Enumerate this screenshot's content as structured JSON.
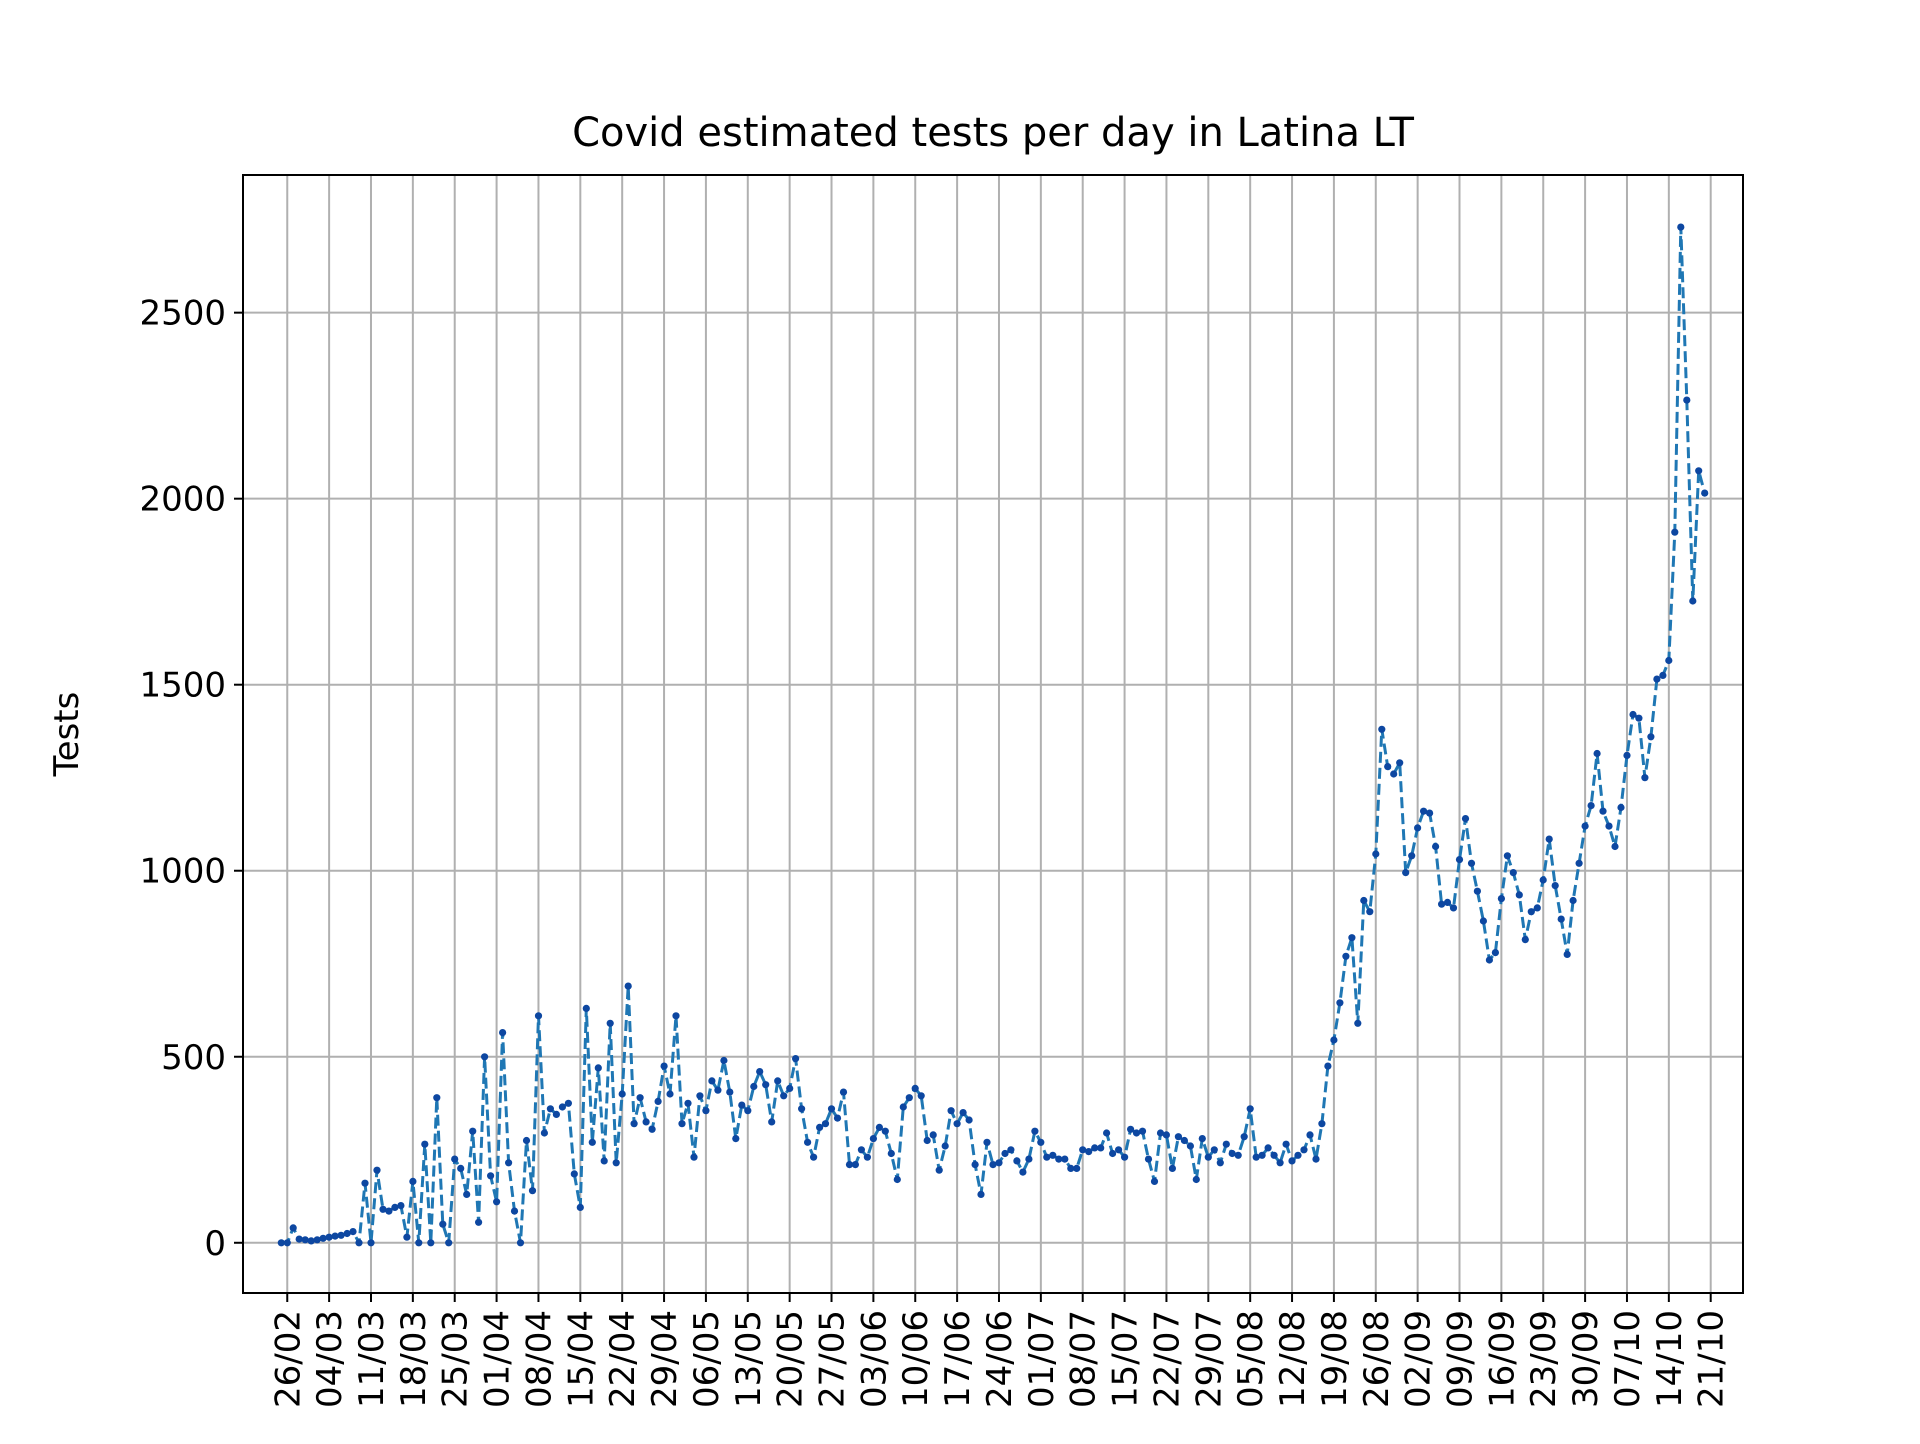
{
  "chart_data": {
    "type": "line",
    "title": "Covid estimated tests per day in Latina LT",
    "xlabel": "",
    "ylabel": "Tests",
    "ylim": [
      -135,
      2870
    ],
    "y_ticks": [
      0,
      500,
      1000,
      1500,
      2000,
      2500
    ],
    "grid": true,
    "legend": "none",
    "line_color": "#1f77b4",
    "marker_color": "#0d47a1",
    "line_style": "dashed",
    "x_start": "2020-02-25",
    "x_tick_labels": [
      "26/02",
      "04/03",
      "11/03",
      "18/03",
      "25/03",
      "01/04",
      "08/04",
      "15/04",
      "22/04",
      "29/04",
      "06/05",
      "13/05",
      "20/05",
      "27/05",
      "03/06",
      "10/06",
      "17/06",
      "24/06",
      "01/07",
      "08/07",
      "15/07",
      "22/07",
      "29/07",
      "05/08",
      "12/08",
      "19/08",
      "26/08",
      "02/09",
      "09/09",
      "16/09",
      "23/09",
      "30/09",
      "07/10",
      "14/10",
      "21/10"
    ],
    "x_tick_dates": [
      "2020-02-26",
      "2020-03-04",
      "2020-03-11",
      "2020-03-18",
      "2020-03-25",
      "2020-04-01",
      "2020-04-08",
      "2020-04-15",
      "2020-04-22",
      "2020-04-29",
      "2020-05-06",
      "2020-05-13",
      "2020-05-20",
      "2020-05-27",
      "2020-06-03",
      "2020-06-10",
      "2020-06-17",
      "2020-06-24",
      "2020-07-01",
      "2020-07-08",
      "2020-07-15",
      "2020-07-22",
      "2020-07-29",
      "2020-08-05",
      "2020-08-12",
      "2020-08-19",
      "2020-08-26",
      "2020-09-02",
      "2020-09-09",
      "2020-09-16",
      "2020-09-23",
      "2020-09-30",
      "2020-10-07",
      "2020-10-14",
      "2020-10-21"
    ],
    "series": [
      {
        "values": [
          0,
          0,
          40,
          10,
          8,
          5,
          8,
          12,
          15,
          18,
          20,
          25,
          30,
          0,
          160,
          0,
          195,
          90,
          85,
          95,
          100,
          15,
          165,
          0,
          265,
          0,
          390,
          50,
          0,
          225,
          200,
          130,
          300,
          55,
          500,
          180,
          110,
          565,
          215,
          85,
          0,
          275,
          140,
          610,
          295,
          360,
          345,
          365,
          375,
          185,
          95,
          630,
          270,
          470,
          220,
          590,
          215,
          400,
          690,
          320,
          390,
          325,
          305,
          380,
          475,
          400,
          610,
          320,
          375,
          230,
          395,
          355,
          435,
          410,
          490,
          405,
          280,
          370,
          355,
          420,
          460,
          425,
          325,
          435,
          395,
          415,
          495,
          360,
          270,
          230,
          310,
          320,
          360,
          335,
          405,
          210,
          210,
          250,
          230,
          280,
          310,
          300,
          240,
          170,
          365,
          390,
          415,
          395,
          275,
          290,
          195,
          260,
          355,
          320,
          350,
          330,
          210,
          130,
          270,
          210,
          215,
          240,
          250,
          220,
          190,
          225,
          300,
          270,
          230,
          235,
          225,
          225,
          200,
          200,
          250,
          245,
          255,
          255,
          295,
          240,
          250,
          230,
          305,
          295,
          300,
          225,
          165,
          295,
          290,
          200,
          285,
          275,
          260,
          170,
          280,
          230,
          250,
          215,
          265,
          240,
          235,
          285,
          360,
          230,
          235,
          255,
          235,
          215,
          265,
          220,
          235,
          250,
          290,
          225,
          320,
          475,
          545,
          645,
          770,
          820,
          590,
          920,
          890,
          1045,
          1380,
          1280,
          1260,
          1290,
          995,
          1040,
          1115,
          1160,
          1155,
          1065,
          910,
          915,
          900,
          1030,
          1140,
          1020,
          945,
          865,
          760,
          780,
          925,
          1040,
          995,
          935,
          815,
          890,
          900,
          975,
          1085,
          960,
          870,
          775,
          920,
          1020,
          1120,
          1175,
          1315,
          1160,
          1120,
          1065,
          1170,
          1310,
          1420,
          1410,
          1250,
          1360,
          1515,
          1525,
          1565,
          1910,
          2730,
          2265,
          1725,
          2075,
          2015
        ]
      }
    ]
  }
}
